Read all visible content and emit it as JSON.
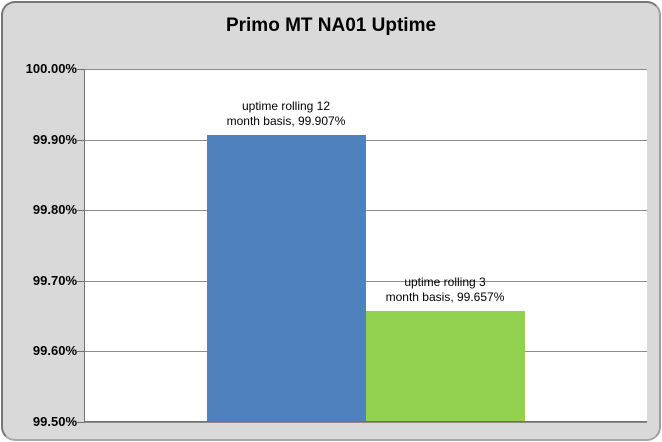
{
  "chart_data": {
    "type": "bar",
    "title": "Primo MT NA01 Uptime",
    "categories": [
      ""
    ],
    "series": [
      {
        "name": "uptime rolling 12 month basis",
        "value": 99.907,
        "color": "#4F81BD",
        "label_line1": "uptime rolling 12",
        "label_line2": "month basis, 99.907%"
      },
      {
        "name": "uptime rolling 3 month basis",
        "value": 99.657,
        "color": "#92D050",
        "label_line1": "uptime rolling 3",
        "label_line2": "month basis, 99.657%"
      }
    ],
    "xlabel": "",
    "ylabel": "",
    "ylim": [
      99.5,
      100.0
    ],
    "ytick_step": 0.1,
    "yticks": [
      {
        "value": 100.0,
        "label": "100.00%"
      },
      {
        "value": 99.9,
        "label": "99.90%"
      },
      {
        "value": 99.8,
        "label": "99.80%"
      },
      {
        "value": 99.7,
        "label": "99.70%"
      },
      {
        "value": 99.6,
        "label": "99.60%"
      },
      {
        "value": 99.5,
        "label": "99.50%"
      }
    ],
    "grid": true,
    "legend": "none"
  },
  "colors": {
    "frame_bg": "#D9D9D9",
    "plot_bg": "#FFFFFF",
    "gridline": "#8C8C8C",
    "axis": "#6F6F6F",
    "text": "#000000"
  }
}
